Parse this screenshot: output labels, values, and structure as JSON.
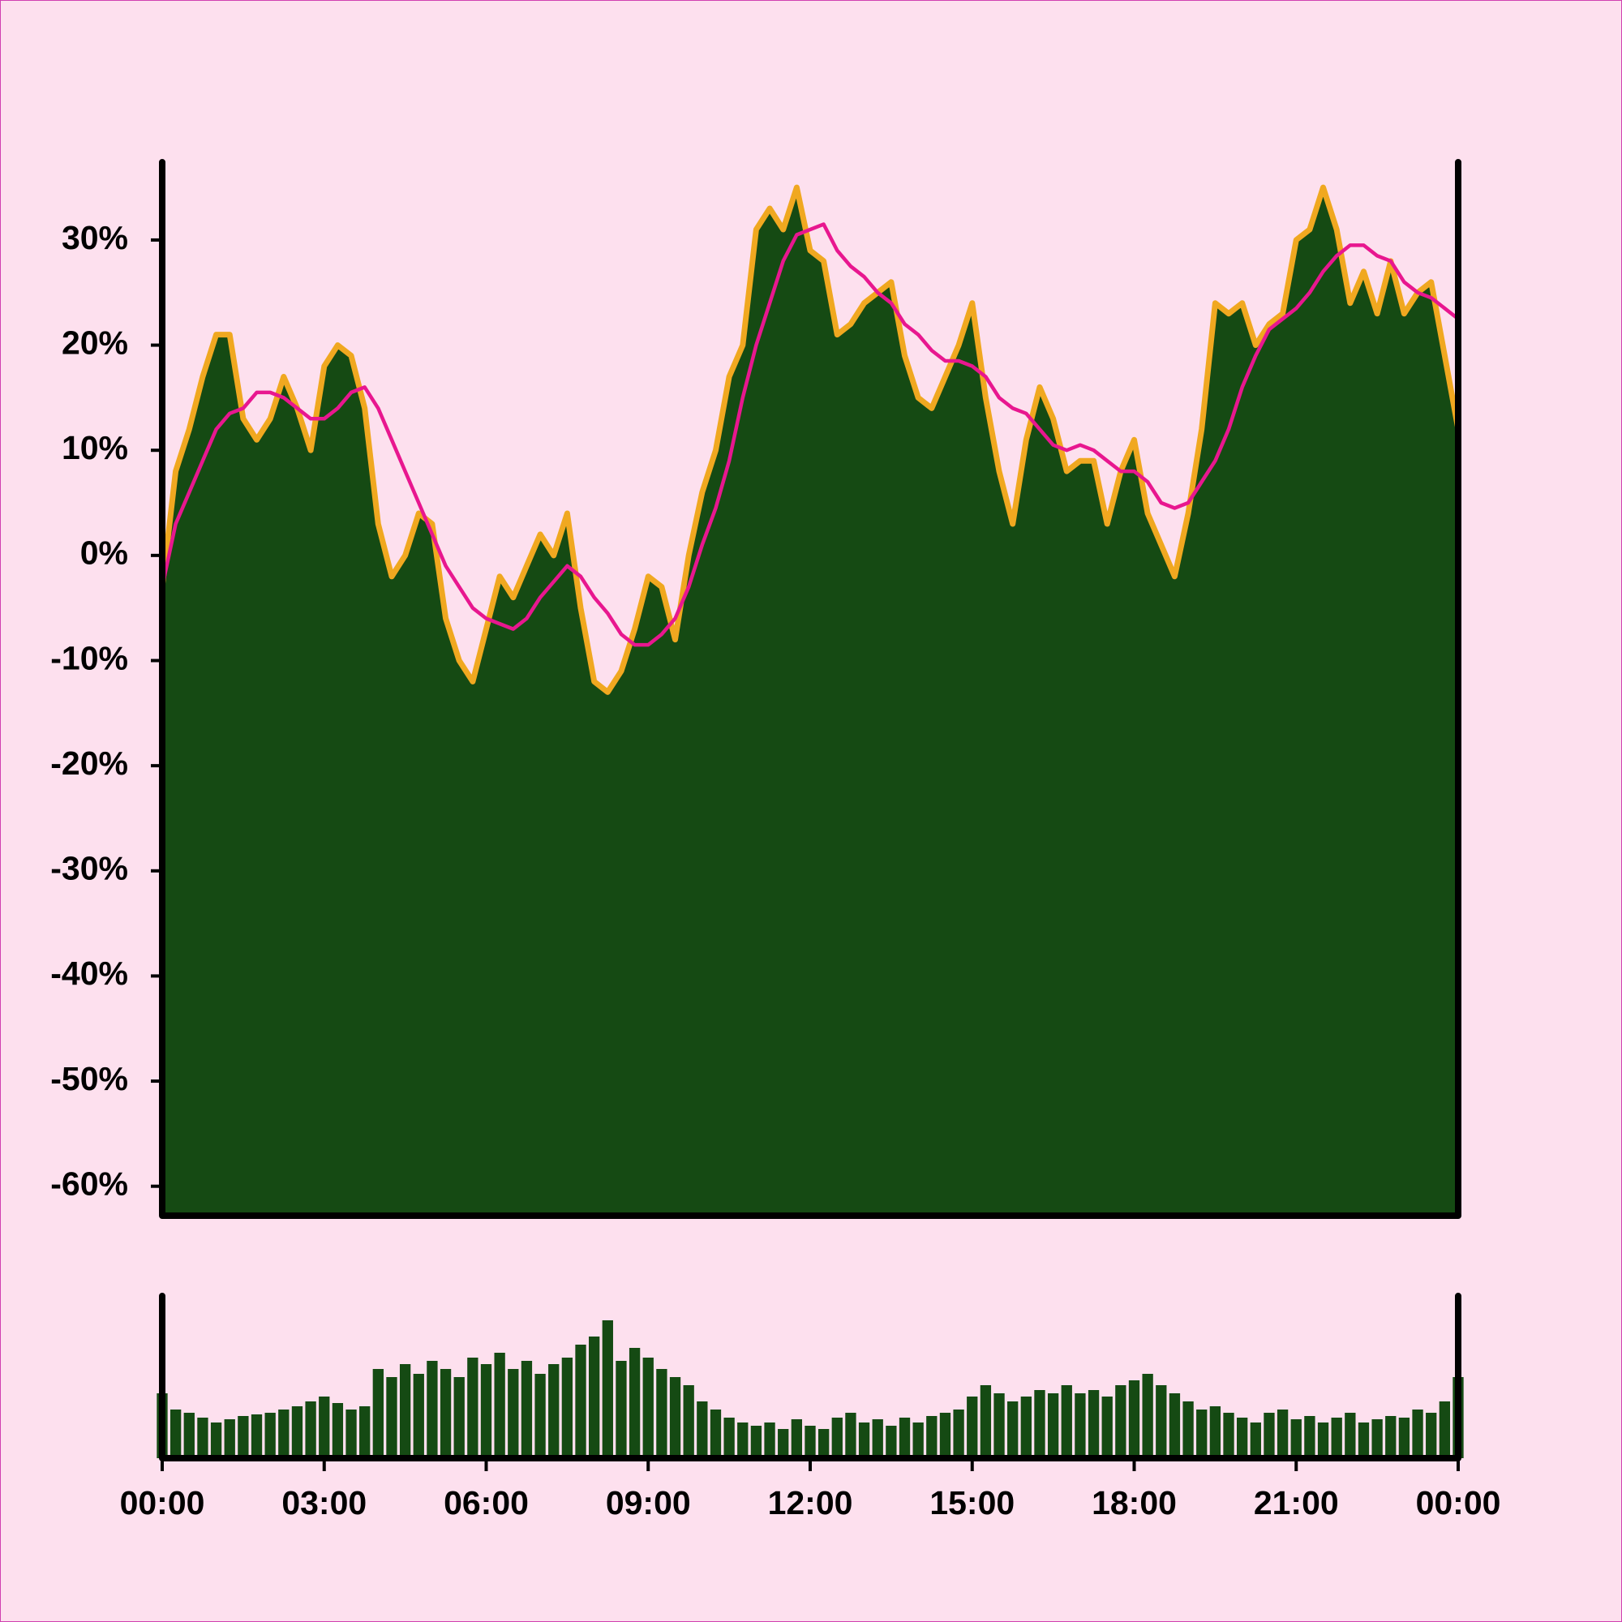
{
  "chart_data": [
    {
      "type": "area",
      "x": [
        0,
        0.25,
        0.5,
        0.75,
        1,
        1.25,
        1.5,
        1.75,
        2,
        2.25,
        2.5,
        2.75,
        3,
        3.25,
        3.5,
        3.75,
        4,
        4.25,
        4.5,
        4.75,
        5,
        5.25,
        5.5,
        5.75,
        6,
        6.25,
        6.5,
        6.75,
        7,
        7.25,
        7.5,
        7.75,
        8,
        8.25,
        8.5,
        8.75,
        9,
        9.25,
        9.5,
        9.75,
        10,
        10.25,
        10.5,
        10.75,
        11,
        11.25,
        11.5,
        11.75,
        12,
        12.25,
        12.5,
        12.75,
        13,
        13.25,
        13.5,
        13.75,
        14,
        14.25,
        14.5,
        14.75,
        15,
        15.25,
        15.5,
        15.75,
        16,
        16.25,
        16.5,
        16.75,
        17,
        17.25,
        17.5,
        17.75,
        18,
        18.25,
        18.5,
        18.75,
        19,
        19.25,
        19.5,
        19.75,
        20,
        20.25,
        20.5,
        20.75,
        21,
        21.25,
        21.5,
        21.75,
        22,
        22.25,
        22.5,
        22.75,
        23,
        23.25,
        23.5,
        23.75,
        24
      ],
      "xlim": [
        0,
        24
      ],
      "ylim": [
        -62.8,
        37.4
      ],
      "yticks": [
        {
          "value": 30,
          "label": "30%"
        },
        {
          "value": 20,
          "label": "20%"
        },
        {
          "value": 10,
          "label": "10%"
        },
        {
          "value": 0,
          "label": "0%"
        },
        {
          "value": -10,
          "label": "-10%"
        },
        {
          "value": -20,
          "label": "-20%"
        },
        {
          "value": -30,
          "label": "-30%"
        },
        {
          "value": -40,
          "label": "-40%"
        },
        {
          "value": -50,
          "label": "-50%"
        },
        {
          "value": -60,
          "label": "-60%"
        }
      ],
      "series": [
        {
          "type": "area",
          "color": "#154a13",
          "edge_color": "#f0a820",
          "values": [
            -3,
            8,
            12,
            17,
            21,
            21,
            13,
            11,
            13,
            17,
            14,
            10,
            18,
            20,
            19,
            14,
            3,
            -2,
            0,
            4,
            3,
            -6,
            -10,
            -12,
            -7,
            -2,
            -4,
            -1,
            2,
            0,
            4,
            -5,
            -12,
            -13,
            -11,
            -7,
            -2,
            -3,
            -8,
            0,
            6,
            10,
            17,
            20,
            31,
            33,
            31,
            35,
            29,
            28,
            21,
            22,
            24,
            25,
            26,
            19,
            15,
            14,
            17,
            20,
            24,
            15,
            8,
            3,
            11,
            16,
            13,
            8,
            9,
            9,
            3,
            8,
            11,
            4,
            1,
            -2,
            4,
            12,
            24,
            23,
            24,
            20,
            22,
            23,
            30,
            31,
            35,
            31,
            24,
            27,
            23,
            28,
            23,
            25,
            26,
            19,
            12
          ]
        },
        {
          "type": "line",
          "color": "#e8178f",
          "values": [
            -3,
            3,
            6,
            9,
            12,
            13.5,
            14,
            15.5,
            15.5,
            15,
            14,
            13,
            13,
            14,
            15.5,
            16,
            14,
            11,
            8,
            5,
            2,
            -1,
            -3,
            -5,
            -6,
            -6.5,
            -7,
            -6,
            -4,
            -2.5,
            -1,
            -2,
            -4,
            -5.5,
            -7.5,
            -8.5,
            -8.5,
            -7.5,
            -6,
            -3,
            1,
            4.5,
            9,
            15,
            20,
            24,
            28,
            30.5,
            31,
            31.5,
            29,
            27.5,
            26.5,
            25,
            24,
            22,
            21,
            19.5,
            18.5,
            18.5,
            18,
            17,
            15,
            14,
            13.5,
            12,
            10.5,
            10,
            10.5,
            10,
            9,
            8,
            8,
            7,
            5,
            4.5,
            5,
            7,
            9,
            12,
            16,
            19,
            21.5,
            22.5,
            23.5,
            25,
            27,
            28.5,
            29.5,
            29.5,
            28.5,
            28,
            26,
            25,
            24.5,
            23.5,
            22.5
          ]
        }
      ]
    },
    {
      "type": "bar",
      "x": [
        0,
        0.25,
        0.5,
        0.75,
        1,
        1.25,
        1.5,
        1.75,
        2,
        2.25,
        2.5,
        2.75,
        3,
        3.25,
        3.5,
        3.75,
        4,
        4.25,
        4.5,
        4.75,
        5,
        5.25,
        5.5,
        5.75,
        6,
        6.25,
        6.5,
        6.75,
        7,
        7.25,
        7.5,
        7.75,
        8,
        8.25,
        8.5,
        8.75,
        9,
        9.25,
        9.5,
        9.75,
        10,
        10.25,
        10.5,
        10.75,
        11,
        11.25,
        11.5,
        11.75,
        12,
        12.25,
        12.5,
        12.75,
        13,
        13.25,
        13.5,
        13.75,
        14,
        14.25,
        14.5,
        14.75,
        15,
        15.25,
        15.5,
        15.75,
        16,
        16.25,
        16.5,
        16.75,
        17,
        17.25,
        17.5,
        17.75,
        18,
        18.25,
        18.5,
        18.75,
        19,
        19.25,
        19.5,
        19.75,
        20,
        20.25,
        20.5,
        20.75,
        21,
        21.25,
        21.5,
        21.75,
        22,
        22.25,
        22.5,
        22.75,
        23,
        23.25,
        23.5,
        23.75,
        24
      ],
      "xlim": [
        0,
        24
      ],
      "xticks": [
        {
          "value": 0,
          "label": "00:00"
        },
        {
          "value": 3,
          "label": "03:00"
        },
        {
          "value": 6,
          "label": "06:00"
        },
        {
          "value": 9,
          "label": "09:00"
        },
        {
          "value": 12,
          "label": "12:00"
        },
        {
          "value": 15,
          "label": "15:00"
        },
        {
          "value": 18,
          "label": "18:00"
        },
        {
          "value": 21,
          "label": "21:00"
        },
        {
          "value": 24,
          "label": "00:00"
        }
      ],
      "ylim": [
        0,
        100
      ],
      "color": "#154a13",
      "values": [
        40,
        30,
        28,
        25,
        22,
        24,
        26,
        27,
        28,
        30,
        32,
        35,
        38,
        34,
        30,
        32,
        55,
        50,
        58,
        52,
        60,
        55,
        50,
        62,
        58,
        65,
        55,
        60,
        52,
        58,
        62,
        70,
        75,
        85,
        60,
        68,
        62,
        55,
        50,
        45,
        35,
        30,
        25,
        22,
        20,
        22,
        18,
        24,
        20,
        18,
        25,
        28,
        22,
        24,
        20,
        25,
        22,
        26,
        28,
        30,
        38,
        45,
        40,
        35,
        38,
        42,
        40,
        45,
        40,
        42,
        38,
        45,
        48,
        52,
        45,
        40,
        35,
        30,
        32,
        28,
        25,
        22,
        28,
        30,
        24,
        26,
        22,
        25,
        28,
        22,
        24,
        26,
        25,
        30,
        28,
        35,
        50
      ]
    }
  ]
}
